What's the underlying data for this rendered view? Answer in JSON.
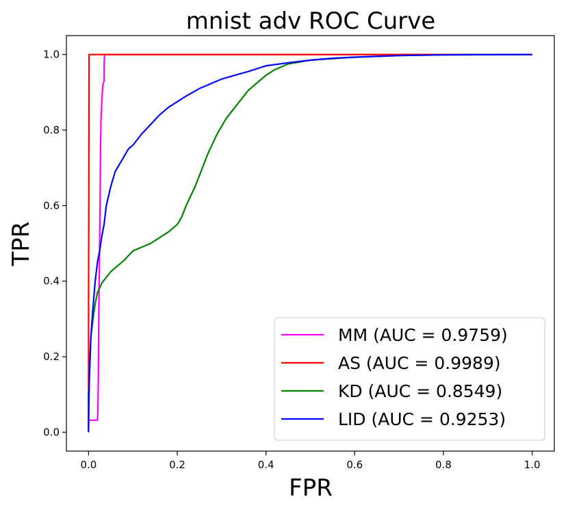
{
  "chart_data": {
    "type": "line",
    "title": "mnist adv ROC Curve",
    "xlabel": "FPR",
    "ylabel": "TPR",
    "xlim": [
      -0.05,
      1.05
    ],
    "ylim": [
      -0.05,
      1.05
    ],
    "xticks": [
      0.0,
      0.2,
      0.4,
      0.6,
      0.8,
      1.0
    ],
    "yticks": [
      0.0,
      0.2,
      0.4,
      0.6,
      0.8,
      1.0
    ],
    "xtick_labels": [
      "0.0",
      "0.2",
      "0.4",
      "0.6",
      "0.8",
      "1.0"
    ],
    "ytick_labels": [
      "0.0",
      "0.2",
      "0.4",
      "0.6",
      "0.8",
      "1.0"
    ],
    "grid": false,
    "legend_position": "lower-right",
    "series": [
      {
        "name": "MM (AUC = 0.9759)",
        "color": "#ff00ff",
        "points": [
          [
            0,
            0
          ],
          [
            0.0,
            0.032
          ],
          [
            0.02,
            0.032
          ],
          [
            0.021,
            0.05
          ],
          [
            0.022,
            0.15
          ],
          [
            0.023,
            0.3
          ],
          [
            0.025,
            0.5
          ],
          [
            0.026,
            0.62
          ],
          [
            0.027,
            0.75
          ],
          [
            0.028,
            0.83
          ],
          [
            0.03,
            0.88
          ],
          [
            0.032,
            0.92
          ],
          [
            0.035,
            0.93
          ],
          [
            0.035,
            0.97
          ],
          [
            0.036,
            1.0
          ],
          [
            1.0,
            1.0
          ]
        ]
      },
      {
        "name": "AS (AUC = 0.9989)",
        "color": "#ff0000",
        "points": [
          [
            0,
            0
          ],
          [
            0.0,
            0.3
          ],
          [
            0.001,
            1.0
          ],
          [
            1.0,
            1.0
          ]
        ]
      },
      {
        "name": "KD (AUC = 0.8549)",
        "color": "#008000",
        "points": [
          [
            0,
            0
          ],
          [
            0.002,
            0.15
          ],
          [
            0.005,
            0.25
          ],
          [
            0.01,
            0.3
          ],
          [
            0.015,
            0.34
          ],
          [
            0.02,
            0.37
          ],
          [
            0.03,
            0.395
          ],
          [
            0.04,
            0.41
          ],
          [
            0.05,
            0.425
          ],
          [
            0.06,
            0.435
          ],
          [
            0.08,
            0.455
          ],
          [
            0.1,
            0.48
          ],
          [
            0.12,
            0.49
          ],
          [
            0.14,
            0.5
          ],
          [
            0.16,
            0.515
          ],
          [
            0.18,
            0.53
          ],
          [
            0.2,
            0.55
          ],
          [
            0.21,
            0.57
          ],
          [
            0.22,
            0.6
          ],
          [
            0.23,
            0.625
          ],
          [
            0.24,
            0.65
          ],
          [
            0.25,
            0.68
          ],
          [
            0.26,
            0.71
          ],
          [
            0.27,
            0.74
          ],
          [
            0.28,
            0.765
          ],
          [
            0.29,
            0.79
          ],
          [
            0.3,
            0.81
          ],
          [
            0.31,
            0.83
          ],
          [
            0.32,
            0.845
          ],
          [
            0.33,
            0.86
          ],
          [
            0.34,
            0.875
          ],
          [
            0.35,
            0.89
          ],
          [
            0.36,
            0.905
          ],
          [
            0.38,
            0.925
          ],
          [
            0.4,
            0.945
          ],
          [
            0.42,
            0.96
          ],
          [
            0.45,
            0.975
          ],
          [
            0.5,
            0.985
          ],
          [
            0.6,
            0.993
          ],
          [
            0.7,
            0.997
          ],
          [
            0.8,
            0.999
          ],
          [
            1.0,
            1.0
          ]
        ]
      },
      {
        "name": "LID (AUC = 0.9253)",
        "color": "#0000ff",
        "points": [
          [
            0,
            0
          ],
          [
            0.0,
            0.1
          ],
          [
            0.002,
            0.15
          ],
          [
            0.005,
            0.25
          ],
          [
            0.01,
            0.33
          ],
          [
            0.015,
            0.4
          ],
          [
            0.02,
            0.45
          ],
          [
            0.025,
            0.48
          ],
          [
            0.03,
            0.52
          ],
          [
            0.035,
            0.55
          ],
          [
            0.04,
            0.6
          ],
          [
            0.05,
            0.65
          ],
          [
            0.06,
            0.69
          ],
          [
            0.07,
            0.71
          ],
          [
            0.08,
            0.73
          ],
          [
            0.09,
            0.75
          ],
          [
            0.1,
            0.76
          ],
          [
            0.11,
            0.775
          ],
          [
            0.12,
            0.79
          ],
          [
            0.14,
            0.815
          ],
          [
            0.16,
            0.84
          ],
          [
            0.18,
            0.86
          ],
          [
            0.2,
            0.875
          ],
          [
            0.22,
            0.89
          ],
          [
            0.25,
            0.91
          ],
          [
            0.28,
            0.925
          ],
          [
            0.3,
            0.935
          ],
          [
            0.33,
            0.945
          ],
          [
            0.36,
            0.955
          ],
          [
            0.4,
            0.97
          ],
          [
            0.45,
            0.978
          ],
          [
            0.5,
            0.985
          ],
          [
            0.55,
            0.99
          ],
          [
            0.6,
            0.993
          ],
          [
            0.7,
            0.997
          ],
          [
            0.8,
            0.999
          ],
          [
            1.0,
            1.0
          ]
        ]
      }
    ]
  }
}
